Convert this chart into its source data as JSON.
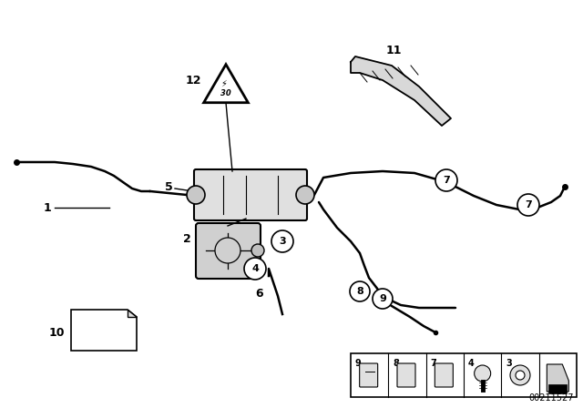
{
  "bg_color": "#ffffff",
  "part_number": "00211527",
  "lw_main": 1.8,
  "lw_thin": 1.0
}
